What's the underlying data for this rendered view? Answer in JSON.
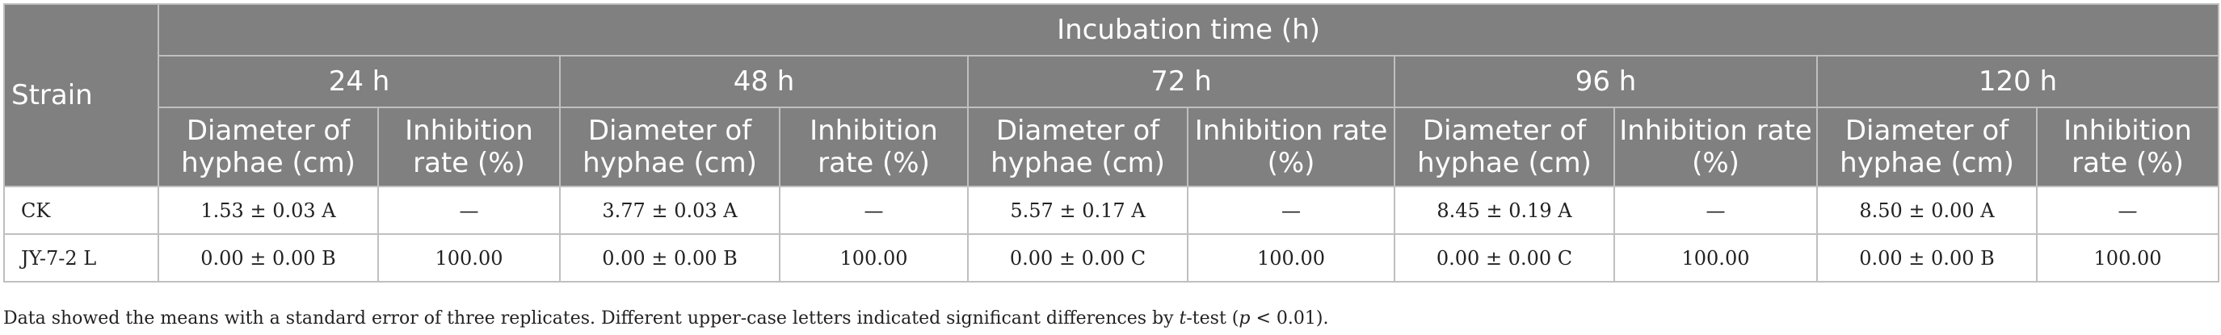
{
  "table": {
    "strain_header": "Strain",
    "incubation_header": "Incubation time (h)",
    "times": [
      "24 h",
      "48 h",
      "72 h",
      "96 h",
      "120 h"
    ],
    "sub_diameter": "Diameter of hyphae (cm)",
    "sub_inhibition": "Inhibition rate (%)",
    "rows": [
      {
        "strain": "CK",
        "cells": [
          "1.53 ± 0.03 A",
          "—",
          "3.77 ± 0.03 A",
          "—",
          "5.57 ± 0.17 A",
          "—",
          "8.45 ± 0.19 A",
          "—",
          "8.50 ± 0.00 A",
          "—"
        ]
      },
      {
        "strain": "JY-7-2 L",
        "cells": [
          "0.00 ± 0.00 B",
          "100.00",
          "0.00 ± 0.00 B",
          "100.00",
          "0.00 ± 0.00 C",
          "100.00",
          "0.00 ± 0.00 C",
          "100.00",
          "0.00 ± 0.00 B",
          "100.00"
        ]
      }
    ]
  },
  "footnote": {
    "part1": "Data showed the means with a standard error of three replicates. Different upper-case letters indicated significant differences by ",
    "italic1": "t",
    "part2": "-test (",
    "italic2": "p",
    "part3": " < 0.01)."
  }
}
